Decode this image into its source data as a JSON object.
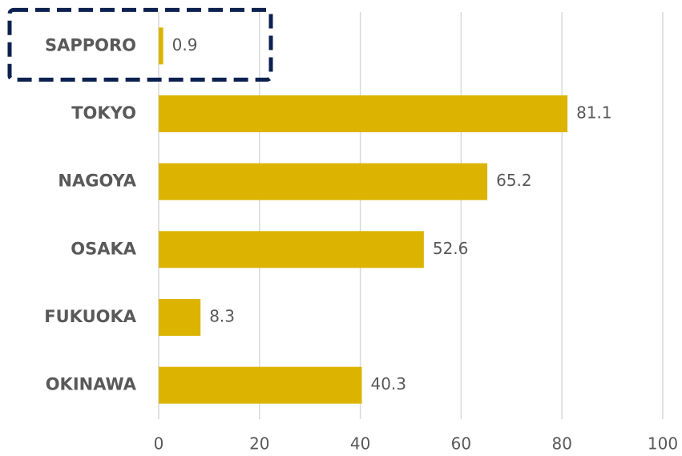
{
  "chart_data": {
    "type": "bar",
    "orientation": "horizontal",
    "categories": [
      "SAPPORO",
      "TOKYO",
      "NAGOYA",
      "OSAKA",
      "FUKUOKA",
      "OKINAWA"
    ],
    "values": [
      0.9,
      81.1,
      65.2,
      52.6,
      8.3,
      40.3
    ],
    "color": "#dcb400",
    "xlim": [
      0,
      100
    ],
    "xticks": [
      0,
      20,
      40,
      60,
      80,
      100
    ],
    "grid": true
  }
}
